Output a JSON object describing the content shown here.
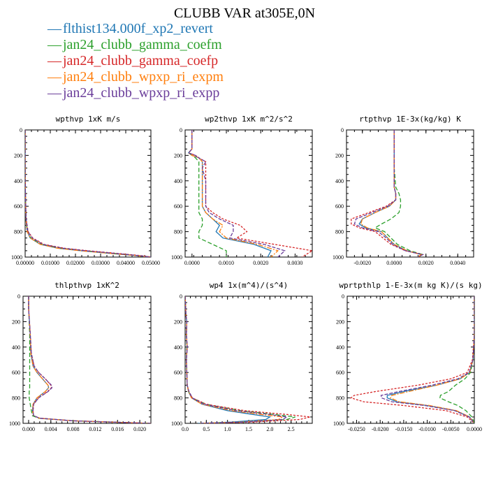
{
  "title": "CLUBB VAR at305E,0N",
  "legend": [
    {
      "label": "flthist134.000f_xp2_revert",
      "color": "#1f77b4"
    },
    {
      "label": "jan24_clubb_gamma_coefm",
      "color": "#2ca02c"
    },
    {
      "label": "jan24_clubb_gamma_coefp",
      "color": "#d62728"
    },
    {
      "label": "jan24_clubb_wpxp_ri_expm",
      "color": "#ff7f0e"
    },
    {
      "label": "jan24_clubb_wpxp_ri_expp",
      "color": "#6a3d9a"
    }
  ],
  "chart_data": [
    {
      "type": "line",
      "title": "wpthvp  1xK m/s",
      "xlim": [
        0,
        0.05
      ],
      "ylim": [
        1000,
        0
      ],
      "xticks": [
        0,
        0.01,
        0.02,
        0.03,
        0.04,
        0.05
      ],
      "xticklabels": [
        "0.00000",
        "0.01000",
        "0.02000",
        "0.03000",
        "0.04000",
        "0.05000"
      ],
      "yticks": [
        0,
        200,
        400,
        600,
        800,
        1000
      ],
      "y": [
        0,
        150,
        300,
        500,
        700,
        800,
        850,
        900,
        930,
        950,
        970,
        990,
        1000
      ],
      "series": [
        {
          "values": [
            0,
            0,
            0,
            0.0001,
            0.0003,
            0.0008,
            0.002,
            0.006,
            0.013,
            0.022,
            0.033,
            0.045,
            0.049
          ]
        },
        {
          "values": [
            0,
            0,
            0,
            0.0001,
            0.0003,
            0.0009,
            0.0022,
            0.0065,
            0.014,
            0.023,
            0.034,
            0.046,
            0.05
          ]
        },
        {
          "values": [
            0,
            0,
            0,
            0.0001,
            0.0004,
            0.0012,
            0.003,
            0.0075,
            0.0155,
            0.025,
            0.036,
            0.047,
            0.05
          ]
        },
        {
          "values": [
            0,
            0,
            0,
            0.0001,
            0.0003,
            0.0008,
            0.0021,
            0.006,
            0.013,
            0.022,
            0.033,
            0.045,
            0.049
          ]
        },
        {
          "values": [
            0,
            0,
            0,
            0.0001,
            0.0004,
            0.0011,
            0.0028,
            0.007,
            0.015,
            0.024,
            0.035,
            0.046,
            0.05
          ]
        }
      ]
    },
    {
      "type": "line",
      "title": "wp2thvp  1xK m^2/s^2",
      "xlim": [
        -0.0002,
        0.0035
      ],
      "ylim": [
        1000,
        0
      ],
      "xticks": [
        0,
        0.001,
        0.002,
        0.003
      ],
      "xticklabels": [
        "0.0000",
        "0.0010",
        "0.0020",
        "0.0030"
      ],
      "yticks": [
        0,
        200,
        400,
        600,
        800,
        1000
      ],
      "y": [
        0,
        150,
        180,
        200,
        220,
        250,
        300,
        400,
        500,
        600,
        650,
        700,
        750,
        800,
        850,
        900,
        950,
        1000
      ],
      "series": [
        {
          "values": [
            0,
            0,
            -0.0001,
            0,
            0.0002,
            0.0003,
            0.0003,
            0.0003,
            0.0003,
            0.0003,
            0.0004,
            0.0006,
            0.0008,
            0.0007,
            0.0009,
            0.0018,
            0.0023,
            0.0022
          ]
        },
        {
          "values": [
            0,
            0,
            -0.0001,
            0,
            0.0001,
            0.0002,
            0.0002,
            0.0002,
            0.0002,
            0.0002,
            0.0002,
            0.0003,
            0.0003,
            0.0002,
            0.0002,
            0.0006,
            0.001,
            0.001
          ]
        },
        {
          "values": [
            0,
            0,
            -0.0001,
            0.0001,
            0.0002,
            0.0004,
            0.0004,
            0.0004,
            0.0004,
            0.0004,
            0.0006,
            0.0009,
            0.0014,
            0.0016,
            0.0013,
            0.0024,
            0.0035,
            0.0032
          ]
        },
        {
          "values": [
            0,
            0,
            -0.0001,
            0,
            0.0002,
            0.0003,
            0.0003,
            0.0003,
            0.0003,
            0.0003,
            0.0004,
            0.0006,
            0.0009,
            0.0008,
            0.001,
            0.0019,
            0.0025,
            0.0023
          ]
        },
        {
          "values": [
            0,
            0,
            -0.0001,
            0.0001,
            0.0002,
            0.0004,
            0.0003,
            0.0004,
            0.0004,
            0.0004,
            0.0005,
            0.0008,
            0.0012,
            0.0012,
            0.0011,
            0.0021,
            0.0027,
            0.0025
          ]
        }
      ]
    },
    {
      "type": "line",
      "title": "rtpthvp  1E-3x(kg/kg) K",
      "xlim": [
        -0.003,
        0.005
      ],
      "ylim": [
        1000,
        0
      ],
      "xticks": [
        -0.002,
        0,
        0.002,
        0.004
      ],
      "xticklabels": [
        "-0.0020",
        "0.0000",
        "0.0020",
        "0.0040"
      ],
      "yticks": [
        0,
        200,
        400,
        600,
        800,
        1000
      ],
      "y": [
        0,
        300,
        450,
        500,
        550,
        600,
        650,
        700,
        740,
        770,
        800,
        850,
        900,
        950,
        980,
        1000
      ],
      "series": [
        {
          "values": [
            0,
            0,
            0,
            0.0001,
            0.0001,
            -0.0003,
            -0.0012,
            -0.002,
            -0.0022,
            -0.0018,
            -0.0008,
            -0.0004,
            0,
            0.0008,
            0.0017,
            0.0015
          ]
        },
        {
          "values": [
            0,
            0,
            0.0001,
            0.0003,
            0.0004,
            0.0004,
            0.0003,
            -0.0002,
            -0.0008,
            -0.0012,
            -0.0006,
            -0.0002,
            0.0002,
            0.001,
            0.0018,
            0.0015
          ]
        },
        {
          "values": [
            0,
            0,
            0,
            0.0001,
            0.0001,
            -0.0005,
            -0.0016,
            -0.0027,
            -0.0027,
            -0.0022,
            -0.0012,
            -0.0007,
            -0.0002,
            0.0007,
            0.0018,
            0.0015
          ]
        },
        {
          "values": [
            0,
            0,
            0,
            0.0001,
            0.0001,
            -0.0003,
            -0.0012,
            -0.002,
            -0.0021,
            -0.0017,
            -0.0008,
            -0.0004,
            0,
            0.0008,
            0.0017,
            0.0015
          ]
        },
        {
          "values": [
            0,
            0,
            0,
            0.0001,
            0.0001,
            -0.0004,
            -0.0014,
            -0.0024,
            -0.0025,
            -0.002,
            -0.001,
            -0.0005,
            -0.0001,
            0.0007,
            0.0018,
            0.0015
          ]
        }
      ]
    },
    {
      "type": "line",
      "title": "thlpthvp  1xK^2",
      "xlim": [
        -0.001,
        0.022
      ],
      "ylim": [
        1000,
        0
      ],
      "xticks": [
        0,
        0.004,
        0.008,
        0.012,
        0.016,
        0.02
      ],
      "xticklabels": [
        "0.000",
        "0.004",
        "0.008",
        "0.012",
        "0.016",
        "0.020"
      ],
      "yticks": [
        0,
        200,
        400,
        600,
        800,
        1000
      ],
      "y": [
        0,
        100,
        300,
        450,
        550,
        600,
        650,
        700,
        720,
        750,
        800,
        850,
        900,
        940,
        960,
        980,
        1000
      ],
      "series": [
        {
          "values": [
            0,
            0,
            0.0003,
            0.0004,
            0.0008,
            0.0015,
            0.0025,
            0.0035,
            0.0036,
            0.003,
            0.0015,
            0.0008,
            0.0007,
            0.0009,
            0.002,
            0.008,
            0.022
          ]
        },
        {
          "values": [
            0,
            0,
            0.0002,
            0.0002,
            0.0002,
            0.0002,
            0.0002,
            0.0002,
            0.0002,
            0.0001,
            0.0001,
            0.0003,
            0.0005,
            0.0007,
            0.0018,
            0.008,
            0.022
          ]
        },
        {
          "values": [
            0,
            0,
            0.0003,
            0.0005,
            0.001,
            0.0018,
            0.003,
            0.004,
            0.0041,
            0.0034,
            0.0018,
            0.0009,
            0.0008,
            0.0009,
            0.002,
            0.008,
            0.022
          ]
        },
        {
          "values": [
            0,
            0,
            0.0003,
            0.0004,
            0.0008,
            0.0015,
            0.0025,
            0.0035,
            0.0036,
            0.003,
            0.0015,
            0.0008,
            0.0007,
            0.0009,
            0.002,
            0.008,
            0.022
          ]
        },
        {
          "values": [
            0,
            0,
            0.0003,
            0.0005,
            0.001,
            0.0018,
            0.003,
            0.0041,
            0.0042,
            0.0035,
            0.0018,
            0.0009,
            0.0008,
            0.0009,
            0.002,
            0.008,
            0.022
          ]
        }
      ]
    },
    {
      "type": "line",
      "title": "wp4  1x(m^4)/(s^4)",
      "xlim": [
        0,
        3
      ],
      "ylim": [
        1000,
        0
      ],
      "xticks": [
        0,
        0.5,
        1,
        1.5,
        2,
        2.5
      ],
      "xticklabels": [
        "0.0",
        "0.5",
        "1.0",
        "1.5",
        "2.0",
        "2.5"
      ],
      "yticks": [
        0,
        200,
        400,
        600,
        800,
        1000
      ],
      "y": [
        0,
        150,
        200,
        300,
        400,
        500,
        600,
        700,
        750,
        800,
        850,
        900,
        930,
        950,
        970,
        990,
        1000
      ],
      "series": [
        {
          "values": [
            0,
            0.02,
            0.04,
            0.03,
            0.05,
            0.03,
            0.04,
            0.05,
            0.08,
            0.15,
            0.4,
            1.0,
            1.6,
            2.0,
            1.9,
            1.1,
            0.3
          ]
        },
        {
          "values": [
            0,
            0.02,
            0.04,
            0.03,
            0.04,
            0.03,
            0.04,
            0.05,
            0.08,
            0.16,
            0.5,
            1.3,
            2.1,
            2.6,
            2.4,
            1.4,
            0.4
          ]
        },
        {
          "values": [
            0,
            0.02,
            0.04,
            0.03,
            0.05,
            0.03,
            0.04,
            0.05,
            0.09,
            0.17,
            0.5,
            1.4,
            2.4,
            2.95,
            2.7,
            1.6,
            0.4
          ]
        },
        {
          "values": [
            0,
            0.02,
            0.04,
            0.03,
            0.05,
            0.03,
            0.04,
            0.05,
            0.08,
            0.15,
            0.4,
            1.1,
            1.8,
            2.3,
            2.2,
            1.3,
            0.35
          ]
        },
        {
          "values": [
            0,
            0.02,
            0.04,
            0.03,
            0.05,
            0.03,
            0.04,
            0.05,
            0.09,
            0.17,
            0.45,
            1.2,
            2.0,
            2.4,
            2.3,
            1.4,
            0.35
          ]
        }
      ]
    },
    {
      "type": "line",
      "title": "wprtpthlp  1-E-3x(m kg K)/(s kg)",
      "xlim": [
        -0.027,
        0.0
      ],
      "ylim": [
        1000,
        0
      ],
      "xticks": [
        -0.025,
        -0.02,
        -0.015,
        -0.01,
        -0.005,
        0
      ],
      "xticklabels": [
        "-0.0250",
        "-0.0200",
        "-0.0150",
        "-0.0100",
        "-0.0050",
        "0.0000"
      ],
      "yticks": [
        0,
        200,
        400,
        600,
        800,
        1000
      ],
      "y": [
        0,
        300,
        500,
        600,
        650,
        700,
        750,
        780,
        800,
        830,
        860,
        900,
        950,
        1000
      ],
      "series": [
        {
          "values": [
            0,
            0,
            -0.0003,
            -0.001,
            -0.003,
            -0.008,
            -0.015,
            -0.0185,
            -0.0185,
            -0.0165,
            -0.01,
            -0.004,
            -0.001,
            0
          ]
        },
        {
          "values": [
            0,
            0,
            -0.0003,
            -0.0008,
            -0.002,
            -0.004,
            -0.0055,
            -0.0072,
            -0.0073,
            -0.0055,
            -0.0035,
            -0.0018,
            -0.0005,
            0
          ]
        },
        {
          "values": [
            0,
            0,
            -0.0004,
            -0.0015,
            -0.005,
            -0.012,
            -0.021,
            -0.0255,
            -0.0262,
            -0.0235,
            -0.015,
            -0.006,
            -0.0015,
            0
          ]
        },
        {
          "values": [
            0,
            0,
            -0.0003,
            -0.001,
            -0.003,
            -0.008,
            -0.014,
            -0.0175,
            -0.0178,
            -0.016,
            -0.0095,
            -0.0038,
            -0.001,
            0
          ]
        },
        {
          "values": [
            0,
            0,
            -0.0003,
            -0.0011,
            -0.0035,
            -0.009,
            -0.016,
            -0.0198,
            -0.0197,
            -0.0175,
            -0.0105,
            -0.0042,
            -0.0011,
            0
          ]
        }
      ]
    }
  ]
}
